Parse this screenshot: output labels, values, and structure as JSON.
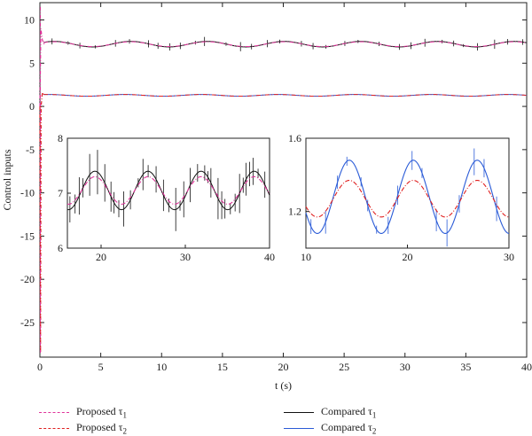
{
  "chart_data": [
    {
      "type": "line",
      "xlabel": "t (s)",
      "ylabel": "Control inputs",
      "xlim": [
        0,
        40
      ],
      "ylim": [
        -29,
        12
      ],
      "x_ticks": [
        0,
        5,
        10,
        15,
        20,
        25,
        30,
        35,
        40
      ],
      "y_ticks": [
        10,
        5,
        0,
        -5,
        -10,
        -15,
        -20,
        -25
      ],
      "grid": false,
      "legend": "bottom",
      "series": [
        {
          "name": "Proposed τ1",
          "color": "#e0339a",
          "style": "dash-dot",
          "description_values": {
            "mean": 7.2,
            "amplitude": 0.28,
            "period": 6.3,
            "initial_peak": 9.0
          }
        },
        {
          "name": "Proposed τ2",
          "color": "#e02020",
          "style": "dash-dot",
          "description_values": {
            "mean": 1.28,
            "amplitude": 0.1,
            "period": 6.3,
            "initial_dip": -28.5
          }
        },
        {
          "name": "Compared τ1",
          "color": "#111111",
          "style": "solid",
          "description_values": {
            "mean": 7.2,
            "amplitude": 0.32,
            "period": 6.3
          }
        },
        {
          "name": "Compared τ2",
          "color": "#2a5bd7",
          "style": "solid",
          "description_values": {
            "mean": 1.28,
            "amplitude": 0.2,
            "period": 6.3
          }
        }
      ]
    },
    {
      "type": "line",
      "inset": "left",
      "xlim": [
        16,
        40
      ],
      "ylim": [
        6,
        8
      ],
      "x_ticks": [
        20,
        30,
        40
      ],
      "y_ticks": [
        8,
        7,
        6
      ],
      "series": [
        {
          "name": "Proposed τ1",
          "mean": 7.05,
          "amplitude": 0.25,
          "period": 6.3
        },
        {
          "name": "Compared τ1",
          "mean": 7.05,
          "amplitude": 0.35,
          "period": 6.3
        }
      ]
    },
    {
      "type": "line",
      "inset": "right",
      "xlim": [
        10,
        30
      ],
      "ylim": [
        1.0,
        1.6
      ],
      "x_ticks": [
        10,
        20,
        30
      ],
      "y_ticks": [
        1.6,
        1.2
      ],
      "series": [
        {
          "name": "Proposed τ2",
          "mean": 1.27,
          "amplitude": 0.1,
          "period": 6.3
        },
        {
          "name": "Compared τ2",
          "mean": 1.28,
          "amplitude": 0.2,
          "period": 6.3
        }
      ]
    }
  ],
  "legend": {
    "items": [
      {
        "base": "Proposed τ",
        "sub": "1"
      },
      {
        "base": "Proposed τ",
        "sub": "2"
      },
      {
        "base": "Compared τ",
        "sub": "1"
      },
      {
        "base": "Compared τ",
        "sub": "2"
      }
    ]
  },
  "colors": {
    "proposed_tau1": "#e0339a",
    "proposed_tau2": "#e02020",
    "compared_tau1": "#111111",
    "compared_tau2": "#2a5bd7"
  }
}
